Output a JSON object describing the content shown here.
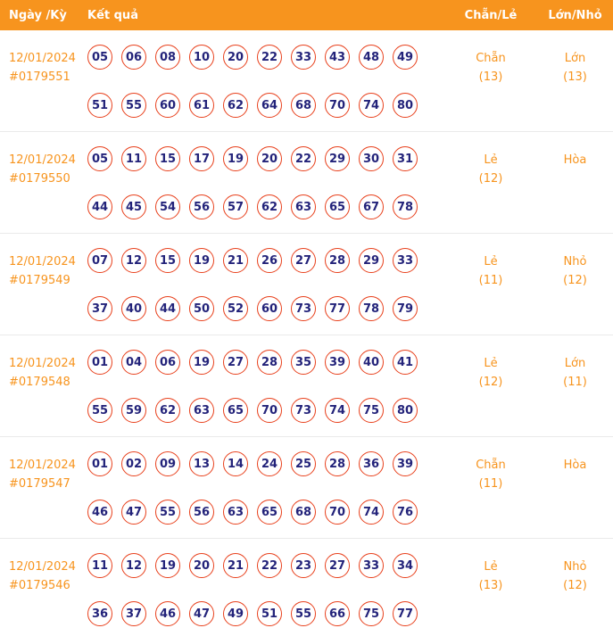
{
  "header": {
    "date": "Ngày /Kỳ",
    "result": "Kết quả",
    "parity": "Chẵn/Lẻ",
    "size": "Lớn/Nhỏ"
  },
  "colors": {
    "header_bg": "#f7941e",
    "accent_text": "#f7941e",
    "ball_border": "#e8401c",
    "ball_text": "#23237a"
  },
  "rows": [
    {
      "date": "12/01/2024",
      "period": "#0179551",
      "numbers": [
        [
          "05",
          "06",
          "08",
          "10",
          "20",
          "22",
          "33",
          "43",
          "48",
          "49"
        ],
        [
          "51",
          "55",
          "60",
          "61",
          "62",
          "64",
          "68",
          "70",
          "74",
          "80"
        ]
      ],
      "parity_label": "Chẵn",
      "parity_count": "(13)",
      "size_label": "Lớn",
      "size_count": "(13)"
    },
    {
      "date": "12/01/2024",
      "period": "#0179550",
      "numbers": [
        [
          "05",
          "11",
          "15",
          "17",
          "19",
          "20",
          "22",
          "29",
          "30",
          "31"
        ],
        [
          "44",
          "45",
          "54",
          "56",
          "57",
          "62",
          "63",
          "65",
          "67",
          "78"
        ]
      ],
      "parity_label": "Lẻ",
      "parity_count": "(12)",
      "size_label": "Hòa",
      "size_count": ""
    },
    {
      "date": "12/01/2024",
      "period": "#0179549",
      "numbers": [
        [
          "07",
          "12",
          "15",
          "19",
          "21",
          "26",
          "27",
          "28",
          "29",
          "33"
        ],
        [
          "37",
          "40",
          "44",
          "50",
          "52",
          "60",
          "73",
          "77",
          "78",
          "79"
        ]
      ],
      "parity_label": "Lẻ",
      "parity_count": "(11)",
      "size_label": "Nhỏ",
      "size_count": "(12)"
    },
    {
      "date": "12/01/2024",
      "period": "#0179548",
      "numbers": [
        [
          "01",
          "04",
          "06",
          "19",
          "27",
          "28",
          "35",
          "39",
          "40",
          "41"
        ],
        [
          "55",
          "59",
          "62",
          "63",
          "65",
          "70",
          "73",
          "74",
          "75",
          "80"
        ]
      ],
      "parity_label": "Lẻ",
      "parity_count": "(12)",
      "size_label": "Lớn",
      "size_count": "(11)"
    },
    {
      "date": "12/01/2024",
      "period": "#0179547",
      "numbers": [
        [
          "01",
          "02",
          "09",
          "13",
          "14",
          "24",
          "25",
          "28",
          "36",
          "39"
        ],
        [
          "46",
          "47",
          "55",
          "56",
          "63",
          "65",
          "68",
          "70",
          "74",
          "76"
        ]
      ],
      "parity_label": "Chẵn",
      "parity_count": "(11)",
      "size_label": "Hòa",
      "size_count": ""
    },
    {
      "date": "12/01/2024",
      "period": "#0179546",
      "numbers": [
        [
          "11",
          "12",
          "19",
          "20",
          "21",
          "22",
          "23",
          "27",
          "33",
          "34"
        ],
        [
          "36",
          "37",
          "46",
          "47",
          "49",
          "51",
          "55",
          "66",
          "75",
          "77"
        ]
      ],
      "parity_label": "Lẻ",
      "parity_count": "(13)",
      "size_label": "Nhỏ",
      "size_count": "(12)"
    }
  ]
}
